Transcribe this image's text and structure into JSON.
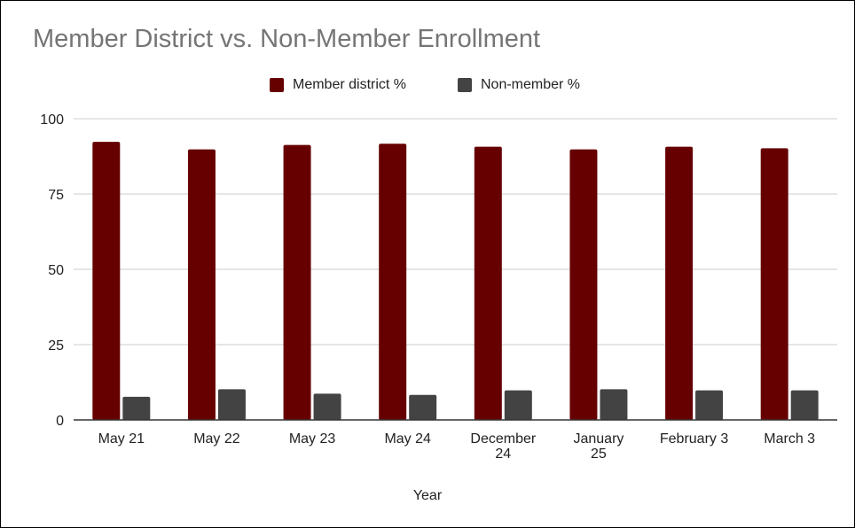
{
  "chart_data": {
    "type": "bar",
    "title": "Member District vs. Non-Member Enrollment",
    "xlabel": "Year",
    "ylabel": "",
    "categories": [
      "May 21",
      "May 22",
      "May 23",
      "May 24",
      "December 24",
      "January 25",
      "February 3",
      "March 3"
    ],
    "category_lines": [
      [
        "May 21"
      ],
      [
        "May 22"
      ],
      [
        "May 23"
      ],
      [
        "May 24"
      ],
      [
        "December",
        "24"
      ],
      [
        "January",
        "25"
      ],
      [
        "February 3"
      ],
      [
        "March 3"
      ]
    ],
    "series": [
      {
        "name": "Member district %",
        "color": "#660000",
        "values": [
          92.3,
          89.8,
          91.3,
          91.7,
          90.7,
          89.8,
          90.7,
          90.2
        ]
      },
      {
        "name": "Non-member %",
        "color": "#434343",
        "values": [
          7.7,
          10.2,
          8.7,
          8.3,
          9.8,
          10.2,
          9.8,
          9.8
        ]
      }
    ],
    "ylim": [
      0,
      100
    ],
    "yticks": [
      0,
      25,
      50,
      75,
      100
    ],
    "grid": true,
    "legend_position": "top"
  }
}
